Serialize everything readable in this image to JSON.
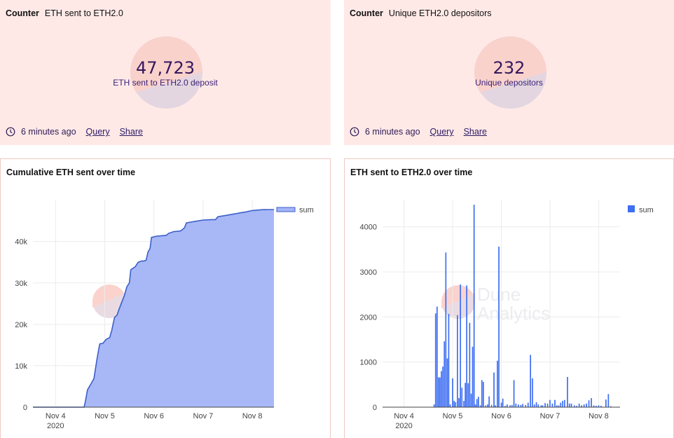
{
  "counters": [
    {
      "kind": "Counter",
      "title": "ETH sent to ETH2.0",
      "value": "47,723",
      "label": "ETH sent to ETH2.0 deposit",
      "footer": {
        "time": "6 minutes ago",
        "query_link": "Query",
        "share_link": "Share"
      }
    },
    {
      "kind": "Counter",
      "title": "Unique ETH2.0 depositors",
      "value": "232",
      "label": "Unique depositors",
      "footer": {
        "time": "6 minutes ago",
        "query_link": "Query",
        "share_link": "Share"
      }
    }
  ],
  "watermark": {
    "line1": "Dune",
    "line2": "Analytics"
  },
  "chart_data": [
    {
      "type": "area",
      "title": "Cumulative ETH sent over time",
      "xlabel": "",
      "ylabel": "",
      "x_ticks": [
        {
          "label": "Nov 4",
          "sub": "2020",
          "day": 0
        },
        {
          "label": "Nov 5",
          "sub": "",
          "day": 1
        },
        {
          "label": "Nov 6",
          "sub": "",
          "day": 2
        },
        {
          "label": "Nov 7",
          "sub": "",
          "day": 3
        },
        {
          "label": "Nov 8",
          "sub": "",
          "day": 4
        }
      ],
      "y_ticks": [
        0,
        10000,
        20000,
        30000,
        40000
      ],
      "y_tick_labels": [
        "0",
        "10k",
        "20k",
        "30k",
        "40k"
      ],
      "xlim": [
        -0.46,
        4.44
      ],
      "ylim": [
        0,
        50100
      ],
      "grid": true,
      "legend": "top-right",
      "series": [
        {
          "name": "sum",
          "color": "#3b5fc9",
          "fill": "#a3b4f7",
          "points": [
            [
              -0.46,
              0
            ],
            [
              0.58,
              0
            ],
            [
              0.6,
              1000
            ],
            [
              0.65,
              4200
            ],
            [
              0.72,
              5600
            ],
            [
              0.78,
              6900
            ],
            [
              0.84,
              11500
            ],
            [
              0.88,
              14200
            ],
            [
              0.9,
              15300
            ],
            [
              0.96,
              15400
            ],
            [
              1.03,
              16400
            ],
            [
              1.1,
              16800
            ],
            [
              1.14,
              18400
            ],
            [
              1.2,
              21700
            ],
            [
              1.25,
              22200
            ],
            [
              1.28,
              23300
            ],
            [
              1.35,
              25500
            ],
            [
              1.4,
              27000
            ],
            [
              1.45,
              29100
            ],
            [
              1.5,
              30000
            ],
            [
              1.53,
              33200
            ],
            [
              1.62,
              33900
            ],
            [
              1.68,
              35000
            ],
            [
              1.75,
              35300
            ],
            [
              1.8,
              35300
            ],
            [
              1.84,
              35500
            ],
            [
              1.88,
              37500
            ],
            [
              1.92,
              38300
            ],
            [
              1.95,
              41000
            ],
            [
              2.05,
              41300
            ],
            [
              2.15,
              41400
            ],
            [
              2.25,
              41500
            ],
            [
              2.3,
              42000
            ],
            [
              2.4,
              42400
            ],
            [
              2.5,
              42500
            ],
            [
              2.55,
              42600
            ],
            [
              2.62,
              43300
            ],
            [
              2.66,
              44500
            ],
            [
              2.75,
              44700
            ],
            [
              2.85,
              44900
            ],
            [
              3.0,
              45200
            ],
            [
              3.15,
              45300
            ],
            [
              3.25,
              45300
            ],
            [
              3.3,
              46000
            ],
            [
              3.5,
              46400
            ],
            [
              3.65,
              46700
            ],
            [
              3.78,
              47000
            ],
            [
              3.85,
              47100
            ],
            [
              4.0,
              47500
            ],
            [
              4.2,
              47700
            ],
            [
              4.44,
              47723
            ]
          ]
        }
      ]
    },
    {
      "type": "bar",
      "title": "ETH sent to ETH2.0 over time",
      "xlabel": "",
      "ylabel": "",
      "x_ticks": [
        {
          "label": "Nov 4",
          "sub": "2020",
          "day": 0
        },
        {
          "label": "Nov 5",
          "sub": "",
          "day": 1
        },
        {
          "label": "Nov 6",
          "sub": "",
          "day": 2
        },
        {
          "label": "Nov 7",
          "sub": "",
          "day": 3
        },
        {
          "label": "Nov 8",
          "sub": "",
          "day": 4
        }
      ],
      "y_ticks": [
        0,
        1000,
        2000,
        3000,
        4000
      ],
      "y_tick_labels": [
        "0",
        "1000",
        "2000",
        "3000",
        "4000"
      ],
      "xlim": [
        -0.44,
        4.44
      ],
      "ylim": [
        0,
        4600
      ],
      "grid": true,
      "legend": "top-right",
      "series": [
        {
          "name": "sum",
          "color": "#3e6ef2",
          "bar_width_days": 0.024,
          "bars": [
            [
              -0.38,
              5
            ],
            [
              -0.34,
              5
            ],
            [
              -0.2,
              5
            ],
            [
              0.62,
              60
            ],
            [
              0.65,
              2080
            ],
            [
              0.68,
              2230
            ],
            [
              0.71,
              660
            ],
            [
              0.74,
              660
            ],
            [
              0.77,
              800
            ],
            [
              0.8,
              900
            ],
            [
              0.83,
              1460
            ],
            [
              0.86,
              3430
            ],
            [
              0.89,
              1080
            ],
            [
              0.92,
              2070
            ],
            [
              0.95,
              60
            ],
            [
              1.0,
              640
            ],
            [
              1.03,
              140
            ],
            [
              1.06,
              110
            ],
            [
              1.1,
              2040
            ],
            [
              1.13,
              200
            ],
            [
              1.16,
              2720
            ],
            [
              1.19,
              430
            ],
            [
              1.23,
              140
            ],
            [
              1.26,
              540
            ],
            [
              1.29,
              2700
            ],
            [
              1.32,
              530
            ],
            [
              1.35,
              1870
            ],
            [
              1.38,
              300
            ],
            [
              1.41,
              1340
            ],
            [
              1.44,
              4490
            ],
            [
              1.47,
              60
            ],
            [
              1.5,
              180
            ],
            [
              1.53,
              230
            ],
            [
              1.57,
              40
            ],
            [
              1.6,
              600
            ],
            [
              1.63,
              560
            ],
            [
              1.68,
              40
            ],
            [
              1.72,
              60
            ],
            [
              1.75,
              240
            ],
            [
              1.8,
              50
            ],
            [
              1.85,
              770
            ],
            [
              1.88,
              40
            ],
            [
              1.92,
              1030
            ],
            [
              1.95,
              3560
            ],
            [
              2.0,
              100
            ],
            [
              2.03,
              190
            ],
            [
              2.08,
              30
            ],
            [
              2.12,
              60
            ],
            [
              2.18,
              40
            ],
            [
              2.22,
              50
            ],
            [
              2.26,
              600
            ],
            [
              2.3,
              80
            ],
            [
              2.35,
              60
            ],
            [
              2.4,
              50
            ],
            [
              2.44,
              70
            ],
            [
              2.5,
              50
            ],
            [
              2.55,
              100
            ],
            [
              2.6,
              1160
            ],
            [
              2.64,
              640
            ],
            [
              2.68,
              60
            ],
            [
              2.72,
              110
            ],
            [
              2.76,
              60
            ],
            [
              2.82,
              40
            ],
            [
              2.85,
              40
            ],
            [
              2.9,
              90
            ],
            [
              2.95,
              80
            ],
            [
              3.0,
              160
            ],
            [
              3.05,
              80
            ],
            [
              3.1,
              160
            ],
            [
              3.14,
              40
            ],
            [
              3.18,
              40
            ],
            [
              3.22,
              100
            ],
            [
              3.26,
              140
            ],
            [
              3.3,
              160
            ],
            [
              3.36,
              670
            ],
            [
              3.4,
              80
            ],
            [
              3.44,
              80
            ],
            [
              3.5,
              40
            ],
            [
              3.55,
              30
            ],
            [
              3.6,
              80
            ],
            [
              3.65,
              40
            ],
            [
              3.7,
              60
            ],
            [
              3.75,
              80
            ],
            [
              3.8,
              150
            ],
            [
              3.85,
              200
            ],
            [
              3.9,
              40
            ],
            [
              3.95,
              30
            ],
            [
              4.0,
              40
            ],
            [
              4.05,
              30
            ],
            [
              4.15,
              170
            ],
            [
              4.2,
              290
            ],
            [
              4.25,
              20
            ],
            [
              4.4,
              10
            ]
          ]
        }
      ]
    }
  ]
}
